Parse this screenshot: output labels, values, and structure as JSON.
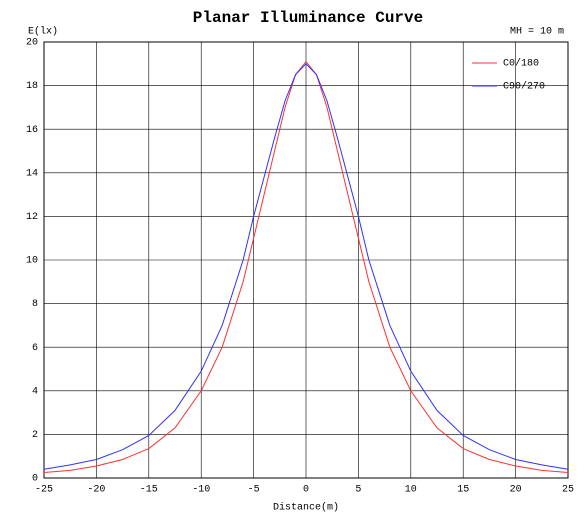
{
  "chart_data": {
    "type": "line",
    "title": "Planar Illuminance Curve",
    "ylabel": "E(lx)",
    "xlabel": "Distance(m)",
    "annotation": "MH = 10 m",
    "x": [
      -25,
      -22.5,
      -20,
      -17.5,
      -15,
      -12.5,
      -10,
      -8,
      -6,
      -5,
      -4,
      -3,
      -2,
      -1,
      0,
      1,
      2,
      3,
      4,
      5,
      6,
      8,
      10,
      12.5,
      15,
      17.5,
      20,
      22.5,
      25
    ],
    "series": [
      {
        "name": "C0/180",
        "color": "#ff3030",
        "values": [
          0.25,
          0.35,
          0.55,
          0.85,
          1.35,
          2.3,
          4.0,
          6.0,
          9.0,
          11.0,
          13.0,
          15.0,
          17.0,
          18.5,
          19.1,
          18.5,
          17.0,
          15.0,
          13.0,
          11.0,
          9.0,
          6.0,
          4.0,
          2.3,
          1.35,
          0.85,
          0.55,
          0.35,
          0.25
        ]
      },
      {
        "name": "C90/270",
        "color": "#3030ff",
        "values": [
          0.4,
          0.6,
          0.85,
          1.3,
          1.95,
          3.1,
          4.9,
          7.0,
          10.0,
          12.0,
          13.8,
          15.6,
          17.3,
          18.5,
          19.0,
          18.5,
          17.3,
          15.6,
          13.8,
          12.0,
          10.0,
          7.0,
          4.9,
          3.1,
          1.95,
          1.3,
          0.85,
          0.6,
          0.4
        ]
      }
    ],
    "xlim": [
      -25,
      25
    ],
    "xticks": [
      -25,
      -20,
      -15,
      -10,
      -5,
      0,
      5,
      10,
      15,
      20,
      25
    ],
    "ylim": [
      0,
      20
    ],
    "yticks": [
      0,
      2,
      4,
      6,
      8,
      10,
      12,
      14,
      16,
      18,
      20
    ],
    "grid": true,
    "legend": "upper right"
  }
}
